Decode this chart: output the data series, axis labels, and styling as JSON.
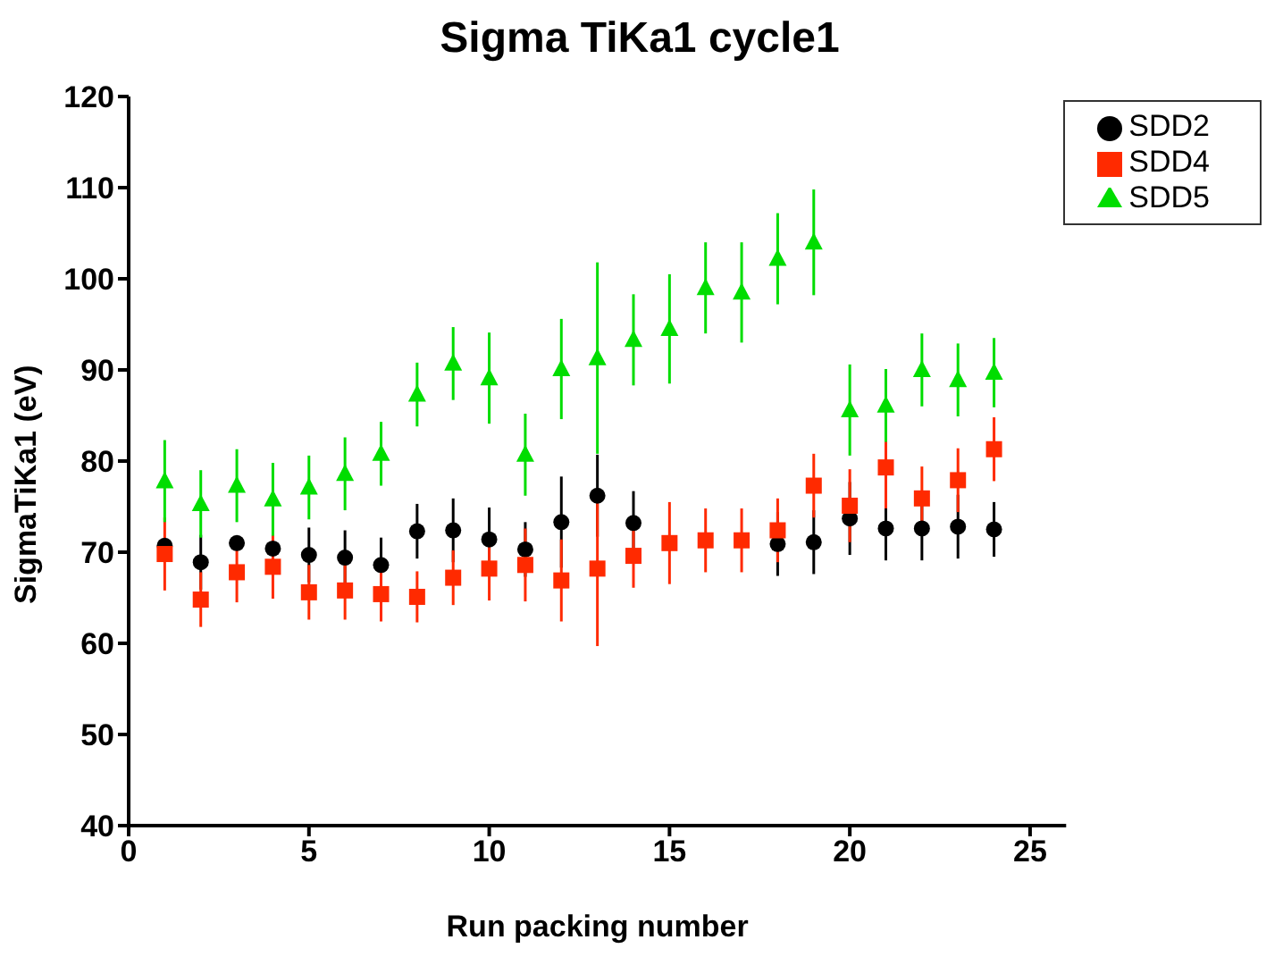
{
  "chart_data": {
    "type": "scatter",
    "title": "Sigma TiKa1 cycle1",
    "xlabel": "Run packing number",
    "ylabel": "SigmaTiKa1 (eV)",
    "x": [
      1,
      2,
      3,
      4,
      5,
      6,
      7,
      8,
      9,
      10,
      11,
      12,
      13,
      14,
      15,
      16,
      17,
      18,
      19,
      20,
      21,
      22,
      23,
      24
    ],
    "xlim": [
      0,
      26
    ],
    "xticks": [
      0,
      5,
      10,
      15,
      20,
      25
    ],
    "ylim": [
      40,
      120
    ],
    "yticks": [
      40,
      50,
      60,
      70,
      80,
      90,
      100,
      110,
      120
    ],
    "grid": false,
    "legend": "top right",
    "series": [
      {
        "name": "SDD2",
        "color": "#000000",
        "marker": "circle",
        "values": [
          70.7,
          68.9,
          71.0,
          70.4,
          69.7,
          69.4,
          68.6,
          72.3,
          72.4,
          71.4,
          70.3,
          73.3,
          76.2,
          73.2,
          null,
          null,
          null,
          70.9,
          71.1,
          73.7,
          72.6,
          72.6,
          72.8,
          72.5
        ],
        "errors": [
          null,
          3,
          null,
          null,
          3,
          3,
          3,
          3,
          3.5,
          3.5,
          3,
          5,
          4.5,
          3.5,
          null,
          null,
          null,
          3.5,
          3.5,
          4,
          3.5,
          3.5,
          3.5,
          3
        ]
      },
      {
        "name": "SDD4",
        "color": "#ff2a00",
        "marker": "square",
        "values": [
          69.8,
          64.8,
          67.8,
          68.4,
          65.6,
          65.8,
          65.4,
          65.1,
          67.2,
          68.2,
          68.6,
          66.9,
          68.2,
          69.6,
          71.0,
          71.3,
          71.3,
          72.4,
          77.3,
          75.1,
          79.3,
          75.9,
          77.9,
          81.3
        ],
        "errors": [
          4,
          3,
          3.3,
          3.5,
          3,
          3.2,
          3,
          2.8,
          3,
          3.5,
          4,
          4.5,
          8.5,
          3.5,
          4.5,
          3.5,
          3.5,
          3.5,
          3.5,
          4,
          4.5,
          3.5,
          3.5,
          3.5
        ]
      },
      {
        "name": "SDD5",
        "color": "#00dd00",
        "marker": "triangle",
        "values": [
          77.8,
          75.3,
          77.3,
          75.8,
          77.1,
          78.6,
          80.8,
          87.3,
          90.7,
          89.1,
          80.7,
          90.1,
          91.3,
          93.3,
          94.5,
          99.0,
          98.5,
          102.2,
          104.0,
          85.6,
          86.1,
          90.0,
          88.9,
          89.7
        ],
        "errors": [
          4.5,
          3.7,
          4,
          4,
          3.5,
          4,
          3.5,
          3.5,
          4,
          5,
          4.5,
          5.5,
          10.5,
          5,
          6,
          5,
          5.5,
          5,
          5.8,
          5,
          4,
          4,
          4,
          3.8
        ]
      }
    ]
  }
}
